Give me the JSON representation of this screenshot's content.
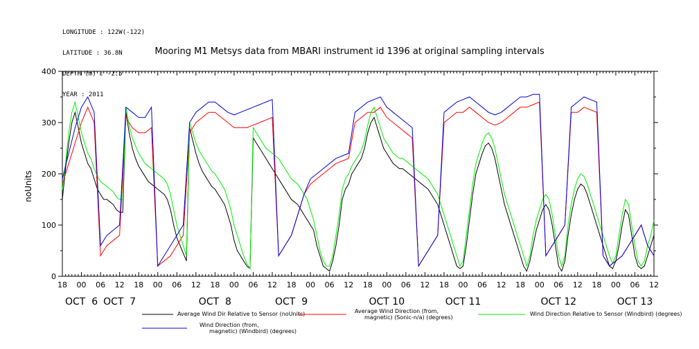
{
  "meta": {
    "longitude": "LONGITUDE : 122W(-122)",
    "latitude": "LATITUDE : 36.8N",
    "depth": "DEPTH (m) : -2.5",
    "year": "YEAR : 2011"
  },
  "chart_data": {
    "type": "line",
    "title": "Mooring M1 Metsys data from MBARI instrument id 1396 at original sampling intervals",
    "ylabel": "noUnits",
    "xlabel": "",
    "ylim": [
      0,
      400
    ],
    "yticks": [
      0,
      100,
      200,
      300,
      400
    ],
    "xlim_hours": [
      0,
      186
    ],
    "xtick_labels": [
      "18",
      "00",
      "06",
      "12",
      "18",
      "00",
      "06",
      "12",
      "18",
      "00",
      "06",
      "12",
      "18",
      "00",
      "06",
      "12",
      "18",
      "00",
      "06",
      "12",
      "18",
      "00",
      "06",
      "12",
      "18",
      "00",
      "06",
      "12",
      "18",
      "00",
      "06",
      "12",
      "18",
      "00",
      "06",
      "12"
    ],
    "day_labels": [
      {
        "label": "OCT  6",
        "hour": 6
      },
      {
        "label": "OCT  7",
        "hour": 18
      },
      {
        "label": "OCT  8",
        "hour": 48
      },
      {
        "label": "OCT  9",
        "hour": 72
      },
      {
        "label": "OCT 10",
        "hour": 102
      },
      {
        "label": "OCT 11",
        "hour": 126
      },
      {
        "label": "OCT 12",
        "hour": 156
      },
      {
        "label": "OCT 13",
        "hour": 180
      }
    ],
    "series": [
      {
        "name": "Average Wind Dir Relative to Sensor (noUnits)",
        "color": "#000000",
        "x": [
          0,
          1,
          2,
          3,
          4,
          5,
          6,
          7,
          8,
          9,
          10,
          11,
          12,
          13,
          14,
          15,
          16,
          17,
          18,
          19,
          20,
          21,
          22,
          23,
          24,
          25,
          26,
          27,
          28,
          29,
          30,
          31,
          32,
          33,
          34,
          35,
          36,
          37,
          38,
          39,
          40,
          41,
          42,
          43,
          44,
          45,
          46,
          47,
          48,
          49,
          50,
          51,
          52,
          53,
          54,
          55,
          56,
          57,
          58,
          59,
          60,
          61,
          62,
          63,
          64,
          65,
          66,
          67,
          68,
          69,
          70,
          71,
          72,
          73,
          74,
          75,
          76,
          77,
          78,
          79,
          80,
          81,
          82,
          83,
          84,
          85,
          86,
          87,
          88,
          89,
          90,
          91,
          92,
          93,
          94,
          95,
          96,
          97,
          98,
          99,
          100,
          101,
          102,
          103,
          104,
          105,
          106,
          107,
          108,
          109,
          110,
          111,
          112,
          113,
          114,
          115,
          116,
          117,
          118,
          119,
          120,
          121,
          122,
          123,
          124,
          125,
          126,
          127,
          128,
          129,
          130,
          131,
          132,
          133,
          134,
          135,
          136,
          137,
          138,
          139,
          140,
          141,
          142,
          143,
          144,
          145,
          146,
          147,
          148,
          149,
          150,
          151,
          152,
          153,
          154,
          155,
          156,
          157,
          158,
          159,
          160,
          161,
          162,
          163,
          164,
          165,
          166,
          167,
          168,
          169,
          170,
          171,
          172,
          173,
          174,
          175,
          176,
          177,
          178,
          179,
          180,
          181,
          182,
          183,
          184,
          185,
          186
        ],
        "y": [
          150,
          210,
          260,
          300,
          320,
          290,
          260,
          240,
          220,
          210,
          190,
          170,
          160,
          150,
          150,
          145,
          140,
          130,
          125,
          125,
          320,
          280,
          250,
          230,
          215,
          205,
          195,
          185,
          180,
          175,
          170,
          165,
          160,
          150,
          130,
          100,
          75,
          60,
          45,
          30,
          290,
          265,
          240,
          220,
          205,
          195,
          185,
          175,
          170,
          160,
          150,
          140,
          120,
          100,
          70,
          50,
          40,
          30,
          20,
          15,
          270,
          260,
          250,
          240,
          230,
          220,
          210,
          200,
          190,
          180,
          170,
          160,
          150,
          145,
          140,
          130,
          120,
          110,
          100,
          90,
          60,
          40,
          20,
          15,
          10,
          30,
          60,
          100,
          150,
          170,
          180,
          200,
          210,
          220,
          230,
          250,
          280,
          300,
          310,
          290,
          270,
          250,
          240,
          230,
          220,
          215,
          210,
          210,
          205,
          200,
          195,
          190,
          185,
          180,
          175,
          170,
          160,
          150,
          140,
          120,
          100,
          80,
          60,
          40,
          20,
          15,
          20,
          60,
          110,
          160,
          200,
          220,
          240,
          255,
          260,
          250,
          230,
          200,
          170,
          140,
          120,
          100,
          80,
          60,
          40,
          20,
          10,
          30,
          60,
          90,
          110,
          130,
          140,
          130,
          100,
          60,
          20,
          10,
          30,
          80,
          120,
          150,
          170,
          180,
          175,
          160,
          140,
          120,
          100,
          80,
          60,
          40,
          20,
          15,
          30,
          60,
          100,
          130,
          120,
          80,
          40,
          20,
          15,
          20,
          40,
          60,
          80
        ],
        "x_factor": 1
      },
      {
        "name": "Average Wind Direction (from, magnetic) (Sonic-n/a) (degrees)",
        "color": "#ff0000",
        "x": [
          0,
          2,
          4,
          6,
          8,
          10,
          12,
          14,
          16,
          18,
          20,
          22,
          24,
          26,
          28,
          30,
          32,
          34,
          36,
          38,
          40,
          42,
          44,
          46,
          48,
          50,
          52,
          54,
          56,
          58,
          60,
          62,
          64,
          66,
          68,
          70,
          72,
          74,
          76,
          78,
          80,
          82,
          84,
          86,
          88,
          90,
          92,
          94,
          96,
          98,
          100,
          102,
          104,
          106,
          108,
          110,
          112,
          114,
          116,
          118,
          120,
          122,
          124,
          126,
          128,
          130,
          132,
          134,
          136,
          138,
          140,
          142,
          144,
          146,
          148,
          150,
          152,
          154,
          156,
          158,
          160,
          162,
          164,
          166,
          168,
          170,
          172,
          174,
          176,
          178,
          180,
          182,
          184,
          186
        ],
        "y": [
          180,
          220,
          260,
          300,
          330,
          300,
          40,
          60,
          70,
          80,
          310,
          290,
          280,
          280,
          290,
          20,
          30,
          40,
          60,
          80,
          280,
          300,
          310,
          320,
          320,
          310,
          300,
          290,
          290,
          290,
          295,
          300,
          305,
          310,
          40,
          60,
          80,
          120,
          160,
          180,
          190,
          200,
          210,
          220,
          225,
          230,
          300,
          310,
          320,
          320,
          330,
          310,
          300,
          290,
          280,
          270,
          20,
          40,
          60,
          80,
          300,
          310,
          320,
          320,
          330,
          320,
          310,
          300,
          295,
          300,
          310,
          320,
          330,
          330,
          335,
          340,
          40,
          60,
          80,
          100,
          320,
          320,
          330,
          325,
          320,
          40,
          20,
          30,
          40,
          60,
          80,
          100,
          60,
          40
        ],
        "x_factor": 1
      },
      {
        "name": "Wind Direction Relative to Sensor (Windbird) (degrees)",
        "color": "#00ee00",
        "x": [
          0,
          1,
          2,
          3,
          4,
          5,
          6,
          7,
          8,
          9,
          10,
          11,
          12,
          13,
          14,
          15,
          16,
          17,
          18,
          19,
          20,
          21,
          22,
          23,
          24,
          25,
          26,
          27,
          28,
          29,
          30,
          31,
          32,
          33,
          34,
          35,
          36,
          37,
          38,
          39,
          40,
          41,
          42,
          43,
          44,
          45,
          46,
          47,
          48,
          49,
          50,
          51,
          52,
          53,
          54,
          55,
          56,
          57,
          58,
          59,
          60,
          61,
          62,
          63,
          64,
          65,
          66,
          67,
          68,
          69,
          70,
          71,
          72,
          73,
          74,
          75,
          76,
          77,
          78,
          79,
          80,
          81,
          82,
          83,
          84,
          85,
          86,
          87,
          88,
          89,
          90,
          91,
          92,
          93,
          94,
          95,
          96,
          97,
          98,
          99,
          100,
          101,
          102,
          103,
          104,
          105,
          106,
          107,
          108,
          109,
          110,
          111,
          112,
          113,
          114,
          115,
          116,
          117,
          118,
          119,
          120,
          121,
          122,
          123,
          124,
          125,
          126,
          127,
          128,
          129,
          130,
          131,
          132,
          133,
          134,
          135,
          136,
          137,
          138,
          139,
          140,
          141,
          142,
          143,
          144,
          145,
          146,
          147,
          148,
          149,
          150,
          151,
          152,
          153,
          154,
          155,
          156,
          157,
          158,
          159,
          160,
          161,
          162,
          163,
          164,
          165,
          166,
          167,
          168,
          169,
          170,
          171,
          172,
          173,
          174,
          175,
          176,
          177,
          178,
          179,
          180,
          181,
          182,
          183,
          184,
          185,
          186
        ],
        "y": [
          170,
          220,
          280,
          320,
          340,
          310,
          280,
          260,
          240,
          230,
          210,
          195,
          185,
          180,
          175,
          170,
          165,
          155,
          150,
          150,
          330,
          295,
          270,
          255,
          240,
          230,
          220,
          215,
          210,
          205,
          200,
          195,
          190,
          180,
          160,
          130,
          100,
          80,
          60,
          40,
          300,
          280,
          260,
          245,
          235,
          225,
          215,
          205,
          200,
          190,
          180,
          170,
          150,
          130,
          100,
          80,
          60,
          40,
          25,
          15,
          290,
          280,
          270,
          260,
          250,
          245,
          240,
          235,
          230,
          220,
          210,
          200,
          190,
          185,
          180,
          170,
          160,
          150,
          130,
          110,
          80,
          50,
          30,
          20,
          20,
          40,
          80,
          120,
          170,
          190,
          200,
          215,
          225,
          235,
          245,
          265,
          295,
          320,
          330,
          310,
          290,
          270,
          260,
          250,
          240,
          235,
          230,
          230,
          225,
          220,
          215,
          210,
          205,
          200,
          195,
          190,
          180,
          170,
          160,
          140,
          120,
          100,
          80,
          60,
          40,
          20,
          30,
          80,
          130,
          180,
          220,
          240,
          260,
          275,
          280,
          270,
          250,
          220,
          190,
          160,
          140,
          120,
          100,
          80,
          60,
          40,
          20,
          40,
          80,
          110,
          130,
          150,
          160,
          150,
          120,
          80,
          40,
          20,
          40,
          100,
          140,
          170,
          190,
          200,
          195,
          180,
          160,
          140,
          120,
          100,
          80,
          60,
          40,
          25,
          40,
          80,
          120,
          150,
          140,
          100,
          60,
          30,
          20,
          30,
          60,
          80,
          110
        ],
        "x_factor": 1
      },
      {
        "name": "Wind Direction (from, magnetic) (Windbird) (degrees)",
        "color": "#0000dd",
        "x": [
          0,
          2,
          4,
          6,
          8,
          10,
          12,
          14,
          16,
          18,
          20,
          22,
          24,
          26,
          28,
          30,
          32,
          34,
          36,
          38,
          40,
          42,
          44,
          46,
          48,
          50,
          52,
          54,
          56,
          58,
          60,
          62,
          64,
          66,
          68,
          70,
          72,
          74,
          76,
          78,
          80,
          82,
          84,
          86,
          88,
          90,
          92,
          94,
          96,
          98,
          100,
          102,
          104,
          106,
          108,
          110,
          112,
          114,
          116,
          118,
          120,
          122,
          124,
          126,
          128,
          130,
          132,
          134,
          136,
          138,
          140,
          142,
          144,
          146,
          148,
          150,
          152,
          154,
          156,
          158,
          160,
          162,
          164,
          166,
          168,
          170,
          172,
          174,
          176,
          178,
          180,
          182,
          184,
          186
        ],
        "y": [
          190,
          240,
          290,
          330,
          350,
          320,
          60,
          80,
          90,
          100,
          330,
          320,
          310,
          310,
          330,
          20,
          40,
          60,
          80,
          100,
          300,
          320,
          330,
          340,
          340,
          330,
          320,
          315,
          320,
          325,
          330,
          335,
          340,
          345,
          40,
          60,
          80,
          120,
          160,
          190,
          200,
          210,
          220,
          230,
          235,
          240,
          320,
          330,
          340,
          345,
          350,
          330,
          320,
          310,
          300,
          290,
          20,
          40,
          60,
          80,
          320,
          330,
          340,
          345,
          350,
          340,
          330,
          320,
          315,
          320,
          330,
          340,
          350,
          350,
          355,
          355,
          40,
          60,
          80,
          100,
          330,
          340,
          350,
          345,
          340,
          40,
          20,
          30,
          40,
          60,
          80,
          100,
          60,
          40
        ],
        "x_factor": 1
      }
    ],
    "legend": [
      {
        "label": "Average Wind Dir Relative to Sensor (noUnits)",
        "color": "#000000"
      },
      {
        "label": "Average Wind Direction (from,",
        "label2": "magnetic) (Sonic-n/a) (degrees)",
        "color": "#ff0000"
      },
      {
        "label": "Wind Direction Relative to Sensor (Windbird) (degrees)",
        "color": "#00ee00"
      },
      {
        "label": "Wind Direction (from,",
        "label2": "magnetic) (Windbird) (degrees)",
        "color": "#0000dd"
      }
    ],
    "grid": false,
    "legend_placement": "bottom"
  }
}
